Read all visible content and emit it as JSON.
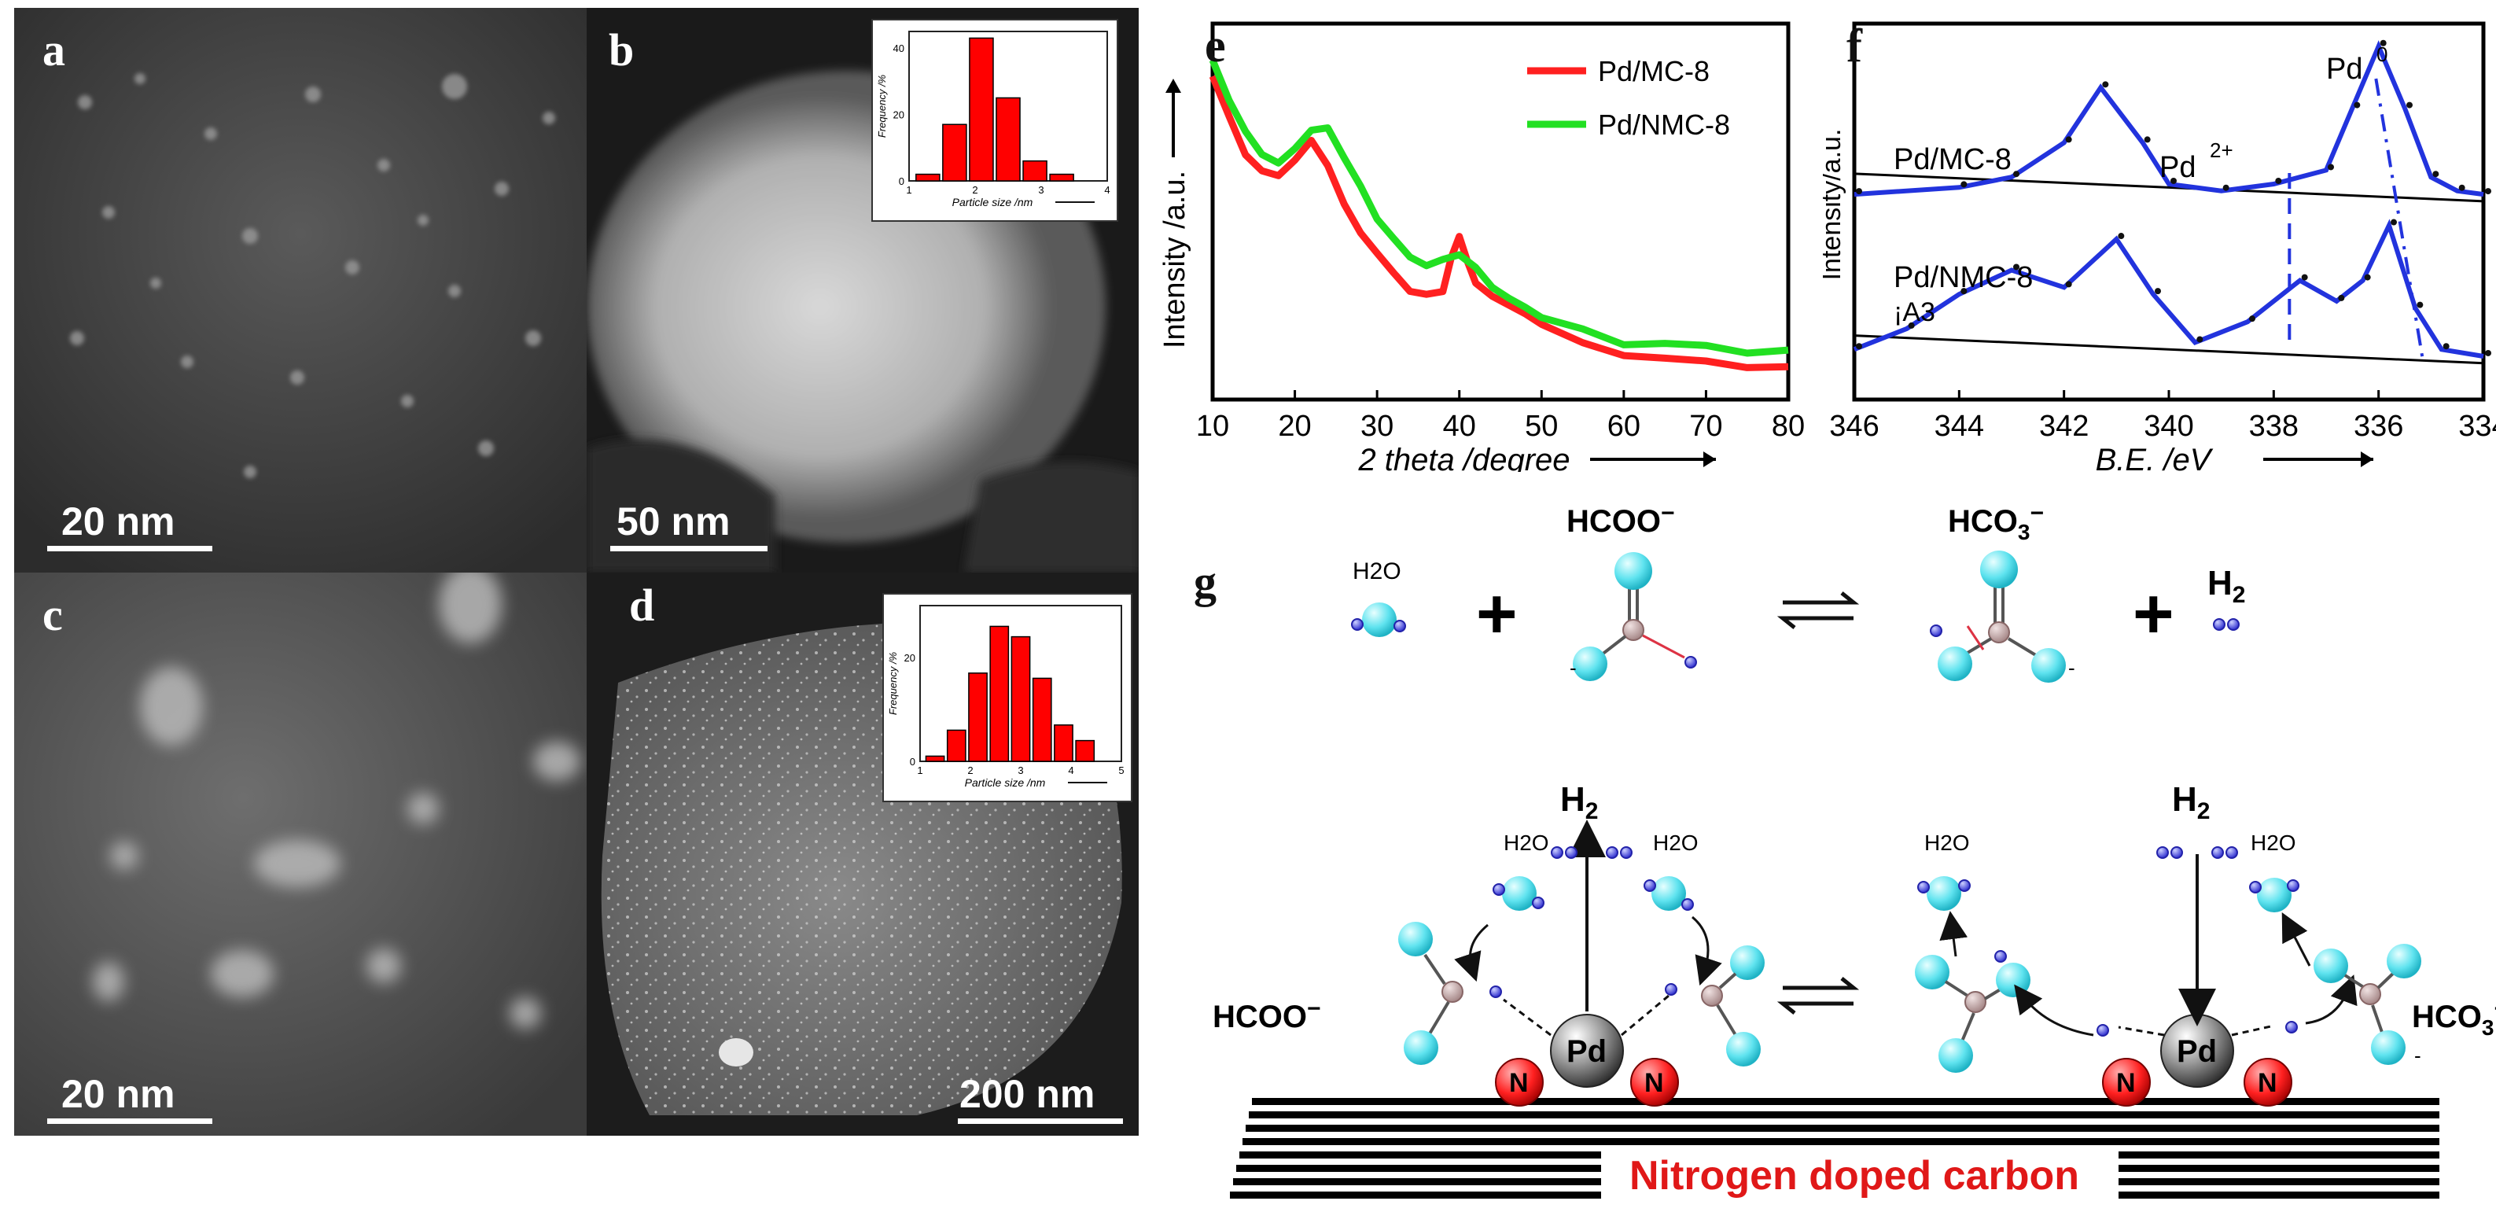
{
  "panels": {
    "a": {
      "label": "a",
      "scale": "20 nm"
    },
    "b": {
      "label": "b",
      "scale": "50 nm"
    },
    "c": {
      "label": "c",
      "scale": "20 nm"
    },
    "d": {
      "label": "d",
      "scale": "200 nm"
    },
    "e": {
      "label": "e"
    },
    "f": {
      "label": "f"
    },
    "g": {
      "label": "g"
    }
  },
  "chart_data": [
    {
      "type": "bar",
      "panel": "b-inset",
      "categories": [
        "1",
        "1.5",
        "2",
        "2.5",
        "3",
        "3.5",
        "4"
      ],
      "values": [
        2,
        17,
        43,
        25,
        6,
        2,
        0
      ],
      "xlabel": "Particle size /nm",
      "ylabel": "Frequency /%",
      "yticks": [
        "0",
        "20",
        "40"
      ],
      "xticks": [
        "1",
        "2",
        "3",
        "4"
      ],
      "ylim": [
        0,
        45
      ],
      "color": "#ff0000"
    },
    {
      "type": "bar",
      "panel": "d-inset",
      "categories": [
        "1",
        "1.5",
        "2",
        "2.5",
        "3",
        "3.5",
        "4",
        "4.5",
        "5"
      ],
      "values": [
        1,
        6,
        17,
        26,
        24,
        16,
        7,
        4,
        0
      ],
      "xlabel": "Particle size /nm",
      "ylabel": "Frequency /%",
      "yticks": [
        "0",
        "20"
      ],
      "xticks": [
        "1",
        "2",
        "3",
        "4",
        "5"
      ],
      "ylim": [
        0,
        30
      ],
      "color": "#ff0000"
    },
    {
      "type": "line",
      "panel": "e",
      "xlabel": "2 theta /degree",
      "ylabel": "Intensity /a.u.",
      "xticks": [
        "10",
        "20",
        "30",
        "40",
        "50",
        "60",
        "70",
        "80"
      ],
      "xlim": [
        10,
        80
      ],
      "series": [
        {
          "name": "Pd/MC-8",
          "color": "#ff2020",
          "x": [
            10,
            12,
            14,
            16,
            18,
            20,
            22,
            24,
            26,
            28,
            30,
            32,
            34,
            36,
            38,
            39,
            40,
            41,
            42,
            44,
            46,
            48,
            50,
            55,
            60,
            65,
            70,
            75,
            80
          ],
          "y": [
            0.86,
            0.74,
            0.65,
            0.6,
            0.59,
            0.63,
            0.68,
            0.62,
            0.53,
            0.45,
            0.39,
            0.34,
            0.3,
            0.28,
            0.29,
            0.37,
            0.42,
            0.36,
            0.3,
            0.27,
            0.24,
            0.22,
            0.19,
            0.16,
            0.13,
            0.12,
            0.11,
            0.1,
            0.1
          ]
        },
        {
          "name": "Pd/NMC-8",
          "color": "#22e022",
          "x": [
            10,
            12,
            14,
            16,
            18,
            20,
            22,
            24,
            26,
            28,
            30,
            32,
            34,
            36,
            38,
            40,
            42,
            44,
            46,
            48,
            50,
            55,
            60,
            65,
            70,
            75,
            80
          ],
          "y": [
            0.9,
            0.8,
            0.72,
            0.66,
            0.64,
            0.67,
            0.72,
            0.73,
            0.65,
            0.56,
            0.48,
            0.42,
            0.37,
            0.35,
            0.36,
            0.38,
            0.36,
            0.31,
            0.27,
            0.25,
            0.22,
            0.19,
            0.16,
            0.14,
            0.13,
            0.12,
            0.12
          ]
        }
      ]
    },
    {
      "type": "line",
      "panel": "f",
      "xlabel": "B.E. /eV",
      "ylabel": "Intensity/a.u.",
      "xticks": [
        "346",
        "344",
        "342",
        "340",
        "338",
        "336",
        "334"
      ],
      "xlim": [
        346,
        334
      ],
      "annotations": [
        "Pd/MC-8",
        "Pd/NMC-8",
        "¡A3",
        "Pd",
        "0",
        "Pd",
        "2+"
      ],
      "series": [
        {
          "name": "Pd/MC-8 fit",
          "color": "#2233dd",
          "x": [
            346,
            344,
            343,
            342,
            341.3,
            340.5,
            340,
            339,
            338,
            337,
            336.5,
            336,
            335.5,
            335,
            334.5,
            334
          ],
          "y": [
            0.55,
            0.57,
            0.6,
            0.7,
            0.86,
            0.7,
            0.58,
            0.56,
            0.58,
            0.62,
            0.8,
            0.98,
            0.8,
            0.6,
            0.56,
            0.55
          ]
        },
        {
          "name": "Pd/NMC-8 fit",
          "color": "#2233dd",
          "x": [
            346,
            345,
            344,
            343,
            342,
            341,
            340.3,
            339.5,
            338.5,
            337.5,
            336.8,
            336.3,
            335.8,
            335.3,
            334.8,
            334
          ],
          "y": [
            0.1,
            0.16,
            0.26,
            0.33,
            0.28,
            0.42,
            0.26,
            0.12,
            0.18,
            0.3,
            0.24,
            0.3,
            0.46,
            0.22,
            0.1,
            0.08
          ]
        }
      ]
    }
  ],
  "scheme": {
    "h2o": "H2O",
    "formate": "HCOO",
    "bicarbonate": "HCO",
    "h2": "H",
    "pd": "Pd",
    "n": "N",
    "support": "Nitrogen doped carbon"
  }
}
